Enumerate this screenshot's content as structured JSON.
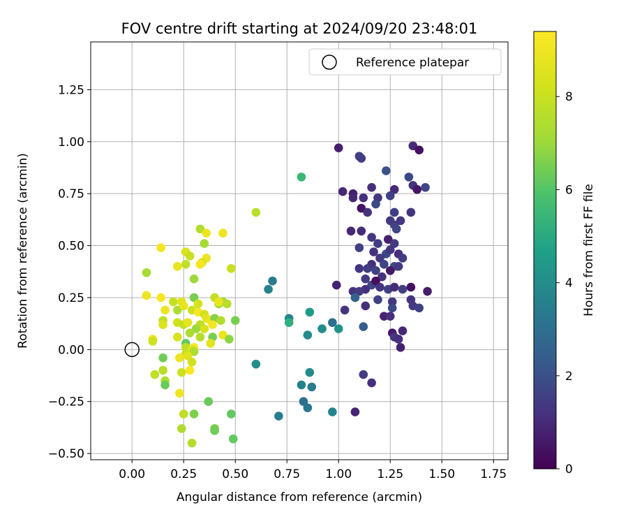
{
  "chart_data": {
    "type": "scatter",
    "title": "FOV centre drift starting at 2024/09/20 23:48:01",
    "xlabel": "Angular distance from reference (arcmin)",
    "ylabel": "Rotation from reference (arcmin)",
    "xlim": [
      -0.2,
      1.82
    ],
    "ylim": [
      -0.53,
      1.48
    ],
    "xticks": [
      "0.00",
      "0.25",
      "0.50",
      "0.75",
      "1.00",
      "1.25",
      "1.50",
      "1.75"
    ],
    "yticks": [
      "−0.50",
      "−0.25",
      "0.00",
      "0.25",
      "0.50",
      "0.75",
      "1.00",
      "1.25"
    ],
    "xtick_values": [
      0,
      0.25,
      0.5,
      0.75,
      1.0,
      1.25,
      1.5,
      1.75
    ],
    "ytick_values": [
      -0.5,
      -0.25,
      0,
      0.25,
      0.5,
      0.75,
      1.0,
      1.25
    ],
    "grid": true,
    "legend_position": "upper-right",
    "legend": [
      {
        "label": "Reference platepar",
        "marker": "open-circle"
      }
    ],
    "reference_point": {
      "x": 0,
      "y": 0
    },
    "colorbar": {
      "label": "Hours from first FF file",
      "min": 0,
      "max": 9.4,
      "ticks": [
        "0",
        "2",
        "4",
        "6",
        "8"
      ],
      "tick_values": [
        0,
        2,
        4,
        6,
        8
      ],
      "colormap": "viridis"
    },
    "points": [
      {
        "x": 1.0,
        "y": 0.97,
        "c": 0.7
      },
      {
        "x": 1.1,
        "y": 0.93,
        "c": 1.6
      },
      {
        "x": 1.11,
        "y": 0.92,
        "c": 1.5
      },
      {
        "x": 1.36,
        "y": 0.98,
        "c": 1.0
      },
      {
        "x": 1.39,
        "y": 0.96,
        "c": 0.4
      },
      {
        "x": 1.23,
        "y": 0.86,
        "c": 2.1
      },
      {
        "x": 1.34,
        "y": 0.83,
        "c": 1.8
      },
      {
        "x": 1.36,
        "y": 0.79,
        "c": 1.2
      },
      {
        "x": 1.38,
        "y": 0.77,
        "c": 0.5
      },
      {
        "x": 1.42,
        "y": 0.78,
        "c": 1.7
      },
      {
        "x": 1.27,
        "y": 0.77,
        "c": 1.0
      },
      {
        "x": 1.16,
        "y": 0.78,
        "c": 1.1
      },
      {
        "x": 1.02,
        "y": 0.76,
        "c": 0.9
      },
      {
        "x": 1.07,
        "y": 0.75,
        "c": 0.7
      },
      {
        "x": 1.07,
        "y": 0.73,
        "c": 0.9
      },
      {
        "x": 1.12,
        "y": 0.73,
        "c": 1.1
      },
      {
        "x": 1.19,
        "y": 0.73,
        "c": 1.3
      },
      {
        "x": 1.25,
        "y": 0.74,
        "c": 1.6
      },
      {
        "x": 1.18,
        "y": 0.7,
        "c": 1.8
      },
      {
        "x": 1.11,
        "y": 0.68,
        "c": 0.4
      },
      {
        "x": 1.14,
        "y": 0.66,
        "c": 1.2
      },
      {
        "x": 1.27,
        "y": 0.66,
        "c": 1.5
      },
      {
        "x": 1.35,
        "y": 0.66,
        "c": 1.3
      },
      {
        "x": 1.25,
        "y": 0.62,
        "c": 1.4
      },
      {
        "x": 1.27,
        "y": 0.6,
        "c": 1.6
      },
      {
        "x": 1.3,
        "y": 0.62,
        "c": 1.3
      },
      {
        "x": 1.28,
        "y": 0.58,
        "c": 1.7
      },
      {
        "x": 1.06,
        "y": 0.57,
        "c": 0.9
      },
      {
        "x": 1.11,
        "y": 0.57,
        "c": 1.0
      },
      {
        "x": 1.16,
        "y": 0.54,
        "c": 1.3
      },
      {
        "x": 1.19,
        "y": 0.51,
        "c": 1.5
      },
      {
        "x": 1.24,
        "y": 0.53,
        "c": 0.7
      },
      {
        "x": 1.27,
        "y": 0.51,
        "c": 1.4
      },
      {
        "x": 1.1,
        "y": 0.49,
        "c": 1.6
      },
      {
        "x": 1.17,
        "y": 0.47,
        "c": 1.2
      },
      {
        "x": 1.23,
        "y": 0.46,
        "c": 1.8
      },
      {
        "x": 1.25,
        "y": 0.48,
        "c": 1.3
      },
      {
        "x": 1.29,
        "y": 0.46,
        "c": 1.1
      },
      {
        "x": 1.31,
        "y": 0.44,
        "c": 1.5
      },
      {
        "x": 1.2,
        "y": 0.44,
        "c": 1.4
      },
      {
        "x": 1.16,
        "y": 0.41,
        "c": 1.1
      },
      {
        "x": 1.22,
        "y": 0.41,
        "c": 1.7
      },
      {
        "x": 1.27,
        "y": 0.4,
        "c": 1.9
      },
      {
        "x": 1.1,
        "y": 0.39,
        "c": 1.3
      },
      {
        "x": 1.14,
        "y": 0.39,
        "c": 1.5
      },
      {
        "x": 1.18,
        "y": 0.38,
        "c": 1.6
      },
      {
        "x": 1.21,
        "y": 0.35,
        "c": 1.2
      },
      {
        "x": 1.25,
        "y": 0.38,
        "c": 0.6
      },
      {
        "x": 1.29,
        "y": 0.4,
        "c": 1.4
      },
      {
        "x": 1.13,
        "y": 0.34,
        "c": 1.4
      },
      {
        "x": 1.16,
        "y": 0.31,
        "c": 1.7
      },
      {
        "x": 1.18,
        "y": 0.33,
        "c": 0.3
      },
      {
        "x": 1.2,
        "y": 0.3,
        "c": 1.3
      },
      {
        "x": 1.24,
        "y": 0.29,
        "c": 1.6
      },
      {
        "x": 1.27,
        "y": 0.3,
        "c": 1.0
      },
      {
        "x": 1.31,
        "y": 0.29,
        "c": 1.5
      },
      {
        "x": 1.35,
        "y": 0.3,
        "c": 0.4
      },
      {
        "x": 1.13,
        "y": 0.29,
        "c": 1.1
      },
      {
        "x": 1.07,
        "y": 0.28,
        "c": 1.2
      },
      {
        "x": 1.1,
        "y": 0.28,
        "c": 1.4
      },
      {
        "x": 1.43,
        "y": 0.28,
        "c": 0.7
      },
      {
        "x": 1.08,
        "y": 0.25,
        "c": 2.6
      },
      {
        "x": 1.19,
        "y": 0.24,
        "c": 1.6
      },
      {
        "x": 1.26,
        "y": 0.23,
        "c": 1.3
      },
      {
        "x": 1.35,
        "y": 0.24,
        "c": 1.2
      },
      {
        "x": 1.13,
        "y": 0.21,
        "c": 1.1
      },
      {
        "x": 1.26,
        "y": 0.2,
        "c": 1.8
      },
      {
        "x": 1.36,
        "y": 0.21,
        "c": 1.4
      },
      {
        "x": 1.39,
        "y": 0.2,
        "c": 1.6
      },
      {
        "x": 1.03,
        "y": 0.19,
        "c": 1.2
      },
      {
        "x": 1.22,
        "y": 0.16,
        "c": 0.8
      },
      {
        "x": 1.25,
        "y": 0.16,
        "c": 1.1
      },
      {
        "x": 0.99,
        "y": 0.31,
        "c": 0.8
      },
      {
        "x": 1.12,
        "y": 0.11,
        "c": 2.4
      },
      {
        "x": 1.26,
        "y": 0.08,
        "c": 0.6
      },
      {
        "x": 1.27,
        "y": 0.06,
        "c": 1.3
      },
      {
        "x": 1.29,
        "y": 0.05,
        "c": 1.1
      },
      {
        "x": 1.31,
        "y": 0.09,
        "c": 0.9
      },
      {
        "x": 1.3,
        "y": 0.01,
        "c": 0.8
      },
      {
        "x": 1.12,
        "y": -0.12,
        "c": 1.5
      },
      {
        "x": 1.16,
        "y": -0.16,
        "c": 1.1
      },
      {
        "x": 1.08,
        "y": -0.3,
        "c": 0.9
      },
      {
        "x": 0.82,
        "y": 0.83,
        "c": 5.5
      },
      {
        "x": 0.66,
        "y": 0.29,
        "c": 3.6
      },
      {
        "x": 0.68,
        "y": 0.33,
        "c": 3.4
      },
      {
        "x": 0.76,
        "y": 0.15,
        "c": 3.7
      },
      {
        "x": 0.76,
        "y": 0.13,
        "c": 5.2
      },
      {
        "x": 0.86,
        "y": 0.18,
        "c": 4.5
      },
      {
        "x": 0.92,
        "y": 0.1,
        "c": 4.0
      },
      {
        "x": 0.97,
        "y": 0.13,
        "c": 3.0
      },
      {
        "x": 1.0,
        "y": 0.1,
        "c": 4.2
      },
      {
        "x": 0.85,
        "y": 0.07,
        "c": 3.9
      },
      {
        "x": 0.6,
        "y": -0.07,
        "c": 4.0
      },
      {
        "x": 0.82,
        "y": -0.17,
        "c": 3.6
      },
      {
        "x": 0.86,
        "y": -0.11,
        "c": 3.9
      },
      {
        "x": 0.87,
        "y": -0.18,
        "c": 3.4
      },
      {
        "x": 0.83,
        "y": -0.25,
        "c": 3.0
      },
      {
        "x": 0.85,
        "y": -0.28,
        "c": 3.2
      },
      {
        "x": 0.71,
        "y": -0.32,
        "c": 3.5
      },
      {
        "x": 0.97,
        "y": -0.3,
        "c": 3.7
      },
      {
        "x": 0.6,
        "y": 0.66,
        "c": 7.6
      },
      {
        "x": 0.33,
        "y": 0.58,
        "c": 7.5
      },
      {
        "x": 0.36,
        "y": 0.56,
        "c": 8.9
      },
      {
        "x": 0.44,
        "y": 0.56,
        "c": 9.0
      },
      {
        "x": 0.35,
        "y": 0.51,
        "c": 7.2
      },
      {
        "x": 0.14,
        "y": 0.49,
        "c": 9.1
      },
      {
        "x": 0.26,
        "y": 0.47,
        "c": 8.4
      },
      {
        "x": 0.28,
        "y": 0.45,
        "c": 8.0
      },
      {
        "x": 0.36,
        "y": 0.44,
        "c": 9.0
      },
      {
        "x": 0.34,
        "y": 0.42,
        "c": 8.6
      },
      {
        "x": 0.33,
        "y": 0.41,
        "c": 9.2
      },
      {
        "x": 0.22,
        "y": 0.4,
        "c": 8.8
      },
      {
        "x": 0.26,
        "y": 0.41,
        "c": 7.8
      },
      {
        "x": 0.48,
        "y": 0.39,
        "c": 8.0
      },
      {
        "x": 0.07,
        "y": 0.37,
        "c": 7.2
      },
      {
        "x": 0.3,
        "y": 0.34,
        "c": 7.0
      },
      {
        "x": 0.07,
        "y": 0.26,
        "c": 9.0
      },
      {
        "x": 0.14,
        "y": 0.25,
        "c": 9.2
      },
      {
        "x": 0.3,
        "y": 0.25,
        "c": 6.5
      },
      {
        "x": 0.2,
        "y": 0.23,
        "c": 7.9
      },
      {
        "x": 0.24,
        "y": 0.23,
        "c": 8.6
      },
      {
        "x": 0.32,
        "y": 0.22,
        "c": 8.3
      },
      {
        "x": 0.4,
        "y": 0.25,
        "c": 7.8
      },
      {
        "x": 0.42,
        "y": 0.22,
        "c": 7.3
      },
      {
        "x": 0.44,
        "y": 0.23,
        "c": 7.1
      },
      {
        "x": 0.46,
        "y": 0.22,
        "c": 7.6
      },
      {
        "x": 0.42,
        "y": 0.23,
        "c": 8.9
      },
      {
        "x": 0.16,
        "y": 0.19,
        "c": 9.0
      },
      {
        "x": 0.22,
        "y": 0.19,
        "c": 7.4
      },
      {
        "x": 0.25,
        "y": 0.21,
        "c": 8.8
      },
      {
        "x": 0.29,
        "y": 0.19,
        "c": 8.1
      },
      {
        "x": 0.32,
        "y": 0.18,
        "c": 9.2
      },
      {
        "x": 0.35,
        "y": 0.17,
        "c": 8.3
      },
      {
        "x": 0.36,
        "y": 0.15,
        "c": 8.7
      },
      {
        "x": 0.38,
        "y": 0.14,
        "c": 9.0
      },
      {
        "x": 0.4,
        "y": 0.15,
        "c": 6.7
      },
      {
        "x": 0.43,
        "y": 0.14,
        "c": 7.5
      },
      {
        "x": 0.5,
        "y": 0.14,
        "c": 6.5
      },
      {
        "x": 0.15,
        "y": 0.14,
        "c": 7.7
      },
      {
        "x": 0.15,
        "y": 0.12,
        "c": 8.5
      },
      {
        "x": 0.22,
        "y": 0.13,
        "c": 8.2
      },
      {
        "x": 0.25,
        "y": 0.12,
        "c": 7.9
      },
      {
        "x": 0.27,
        "y": 0.13,
        "c": 8.8
      },
      {
        "x": 0.33,
        "y": 0.12,
        "c": 7.8
      },
      {
        "x": 0.39,
        "y": 0.12,
        "c": 9.1
      },
      {
        "x": 0.31,
        "y": 0.1,
        "c": 7.0
      },
      {
        "x": 0.35,
        "y": 0.1,
        "c": 8.3
      },
      {
        "x": 0.28,
        "y": 0.08,
        "c": 7.3
      },
      {
        "x": 0.22,
        "y": 0.06,
        "c": 8.4
      },
      {
        "x": 0.33,
        "y": 0.06,
        "c": 7.6
      },
      {
        "x": 0.39,
        "y": 0.06,
        "c": 6.5
      },
      {
        "x": 0.44,
        "y": 0.07,
        "c": 8.9
      },
      {
        "x": 0.47,
        "y": 0.05,
        "c": 6.8
      },
      {
        "x": 0.1,
        "y": 0.05,
        "c": 9.1
      },
      {
        "x": 0.1,
        "y": 0.04,
        "c": 8.1
      },
      {
        "x": 0.26,
        "y": 0.03,
        "c": 6.2
      },
      {
        "x": 0.38,
        "y": 0.03,
        "c": 8.7
      },
      {
        "x": 0.26,
        "y": 0.01,
        "c": 7.8
      },
      {
        "x": 0.3,
        "y": 0.01,
        "c": 9.3
      },
      {
        "x": 0.29,
        "y": 0.0,
        "c": 8.5
      },
      {
        "x": 0.3,
        "y": -0.01,
        "c": 7.4
      },
      {
        "x": 0.26,
        "y": -0.02,
        "c": 8.0
      },
      {
        "x": 0.23,
        "y": -0.04,
        "c": 9.0
      },
      {
        "x": 0.27,
        "y": -0.03,
        "c": 8.6
      },
      {
        "x": 0.29,
        "y": -0.06,
        "c": 8.2
      },
      {
        "x": 0.15,
        "y": -0.04,
        "c": 6.4
      },
      {
        "x": 0.28,
        "y": -0.1,
        "c": 9.3
      },
      {
        "x": 0.15,
        "y": -0.1,
        "c": 7.6
      },
      {
        "x": 0.24,
        "y": -0.11,
        "c": 8.1
      },
      {
        "x": 0.11,
        "y": -0.12,
        "c": 7.8
      },
      {
        "x": 0.16,
        "y": -0.15,
        "c": 7.4
      },
      {
        "x": 0.16,
        "y": -0.17,
        "c": 6.3
      },
      {
        "x": 0.23,
        "y": -0.21,
        "c": 9.0
      },
      {
        "x": 0.37,
        "y": -0.25,
        "c": 6.3
      },
      {
        "x": 0.25,
        "y": -0.31,
        "c": 7.8
      },
      {
        "x": 0.3,
        "y": -0.31,
        "c": 6.6
      },
      {
        "x": 0.4,
        "y": -0.38,
        "c": 6.5
      },
      {
        "x": 0.4,
        "y": -0.39,
        "c": 6.4
      },
      {
        "x": 0.24,
        "y": -0.38,
        "c": 7.4
      },
      {
        "x": 0.48,
        "y": -0.31,
        "c": 6.2
      },
      {
        "x": 0.49,
        "y": -0.43,
        "c": 6.2
      },
      {
        "x": 0.29,
        "y": -0.45,
        "c": 7.5
      }
    ]
  }
}
